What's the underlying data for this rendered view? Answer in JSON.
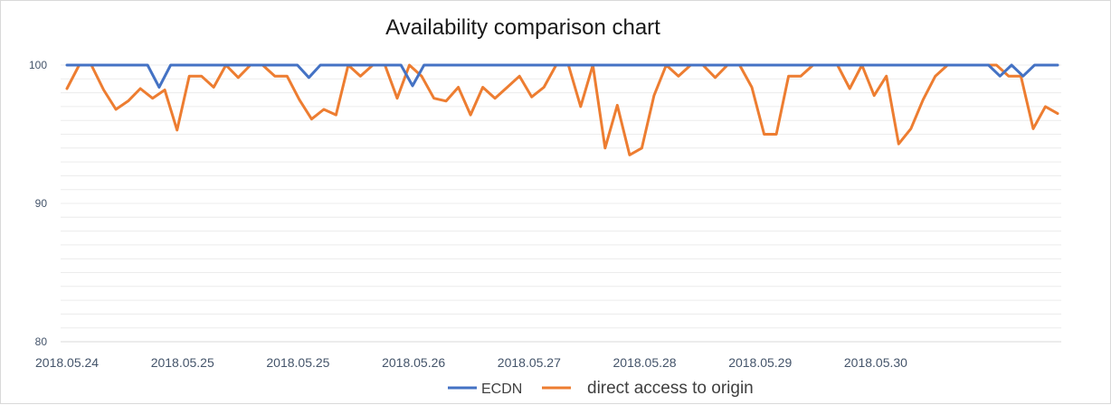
{
  "chart_data": {
    "type": "line",
    "title": "Availability comparison chart",
    "xlabel": "",
    "ylabel": "",
    "ylim": [
      80,
      100
    ],
    "ytick_labels": [
      "100",
      "90",
      "80"
    ],
    "yticks": [
      100,
      90,
      80
    ],
    "grid": true,
    "legend_position": "bottom",
    "xtick_labels": [
      "2018.05.24",
      "2018.05.25",
      "2018.05.25",
      "2018.05.26",
      "2018.05.27",
      "2018.05.28",
      "2018.05.29",
      "2018.05.30"
    ],
    "series": [
      {
        "name": "ECDN",
        "color": "#4472c4",
        "values": [
          100,
          100,
          100,
          100,
          100,
          100,
          100,
          100,
          98.4,
          100,
          100,
          100,
          100,
          100,
          100,
          100,
          100,
          100,
          100,
          100,
          100,
          99.1,
          100,
          100,
          100,
          100,
          100,
          100,
          100,
          100,
          98.5,
          100,
          100,
          100,
          100,
          100,
          100,
          100,
          100,
          100,
          100,
          100,
          100,
          100,
          100,
          100,
          100,
          100,
          100,
          100,
          100,
          100,
          100,
          100,
          100,
          100,
          100,
          100,
          100,
          100,
          100,
          100,
          100,
          100,
          100,
          100,
          100,
          100,
          100,
          100,
          100,
          100,
          100,
          100,
          100,
          100,
          100,
          100,
          100,
          100,
          100,
          99.2,
          100,
          99.2,
          100,
          100,
          100
        ]
      },
      {
        "name": "direct access to origin",
        "color": "#ed7d31",
        "values": [
          98.3,
          100,
          100,
          98.2,
          96.8,
          97.4,
          98.3,
          97.6,
          98.2,
          95.3,
          99.2,
          99.2,
          98.4,
          100,
          99.1,
          100,
          100,
          99.2,
          99.2,
          97.5,
          96.1,
          96.8,
          96.4,
          100,
          99.2,
          100,
          100,
          97.6,
          100,
          99.2,
          97.6,
          97.4,
          98.4,
          96.4,
          98.4,
          97.6,
          98.4,
          99.2,
          97.7,
          98.4,
          100,
          100,
          97,
          100,
          94,
          97.1,
          93.5,
          94,
          97.8,
          100,
          99.2,
          100,
          100,
          99.1,
          100,
          100,
          98.4,
          95,
          95,
          99.2,
          99.2,
          100,
          100,
          100,
          98.3,
          100,
          97.8,
          99.2,
          94.3,
          95.4,
          97.5,
          99.2,
          100,
          100,
          100,
          100,
          100,
          99.2,
          99.2,
          95.4,
          97,
          96.5
        ]
      }
    ]
  }
}
